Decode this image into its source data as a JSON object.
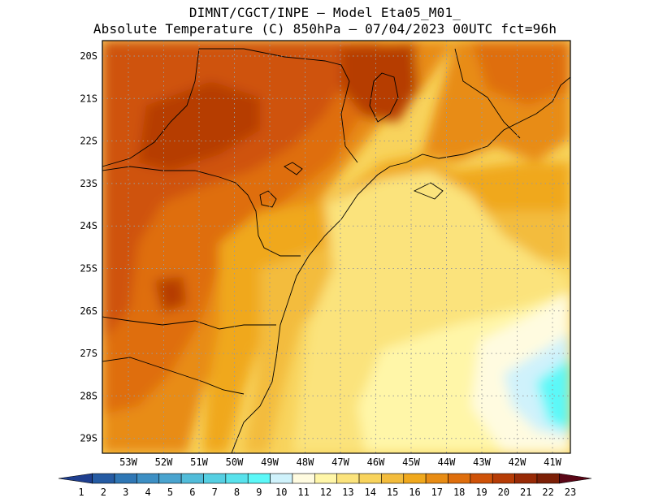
{
  "header": {
    "line1": "DIMNT/CGCT/INPE –  Model Eta05_M01_",
    "line2": "Absolute Temperature (C) 850hPa –  07/04/2023 00UTC fct=96h"
  },
  "map": {
    "lat_labels": [
      "20S",
      "21S",
      "22S",
      "23S",
      "24S",
      "25S",
      "26S",
      "27S",
      "28S",
      "29S"
    ],
    "lon_labels": [
      "53W",
      "52W",
      "51W",
      "50W",
      "49W",
      "48W",
      "47W",
      "46W",
      "45W",
      "44W",
      "43W",
      "42W",
      "41W"
    ],
    "grid": "dotted"
  },
  "colorbar": {
    "labels": [
      "1",
      "2",
      "3",
      "4",
      "5",
      "6",
      "7",
      "8",
      "9",
      "10",
      "11",
      "12",
      "13",
      "14",
      "15",
      "16",
      "17",
      "18",
      "19",
      "20",
      "21",
      "22",
      "23"
    ],
    "colors": [
      "#1f3f8f",
      "#255ba3",
      "#2f77b5",
      "#3d8fc4",
      "#4aa4cf",
      "#51bcd9",
      "#55cfe2",
      "#58e2ec",
      "#5cf8f8",
      "#cff2fb",
      "#fffbe0",
      "#fff6a8",
      "#fbe37c",
      "#f8d35c",
      "#f3bc3c",
      "#f0a81c",
      "#e88c14",
      "#df6e0c",
      "#cf5208",
      "#b63c06",
      "#982a06",
      "#7c1f06",
      "#5a0616"
    ]
  }
}
